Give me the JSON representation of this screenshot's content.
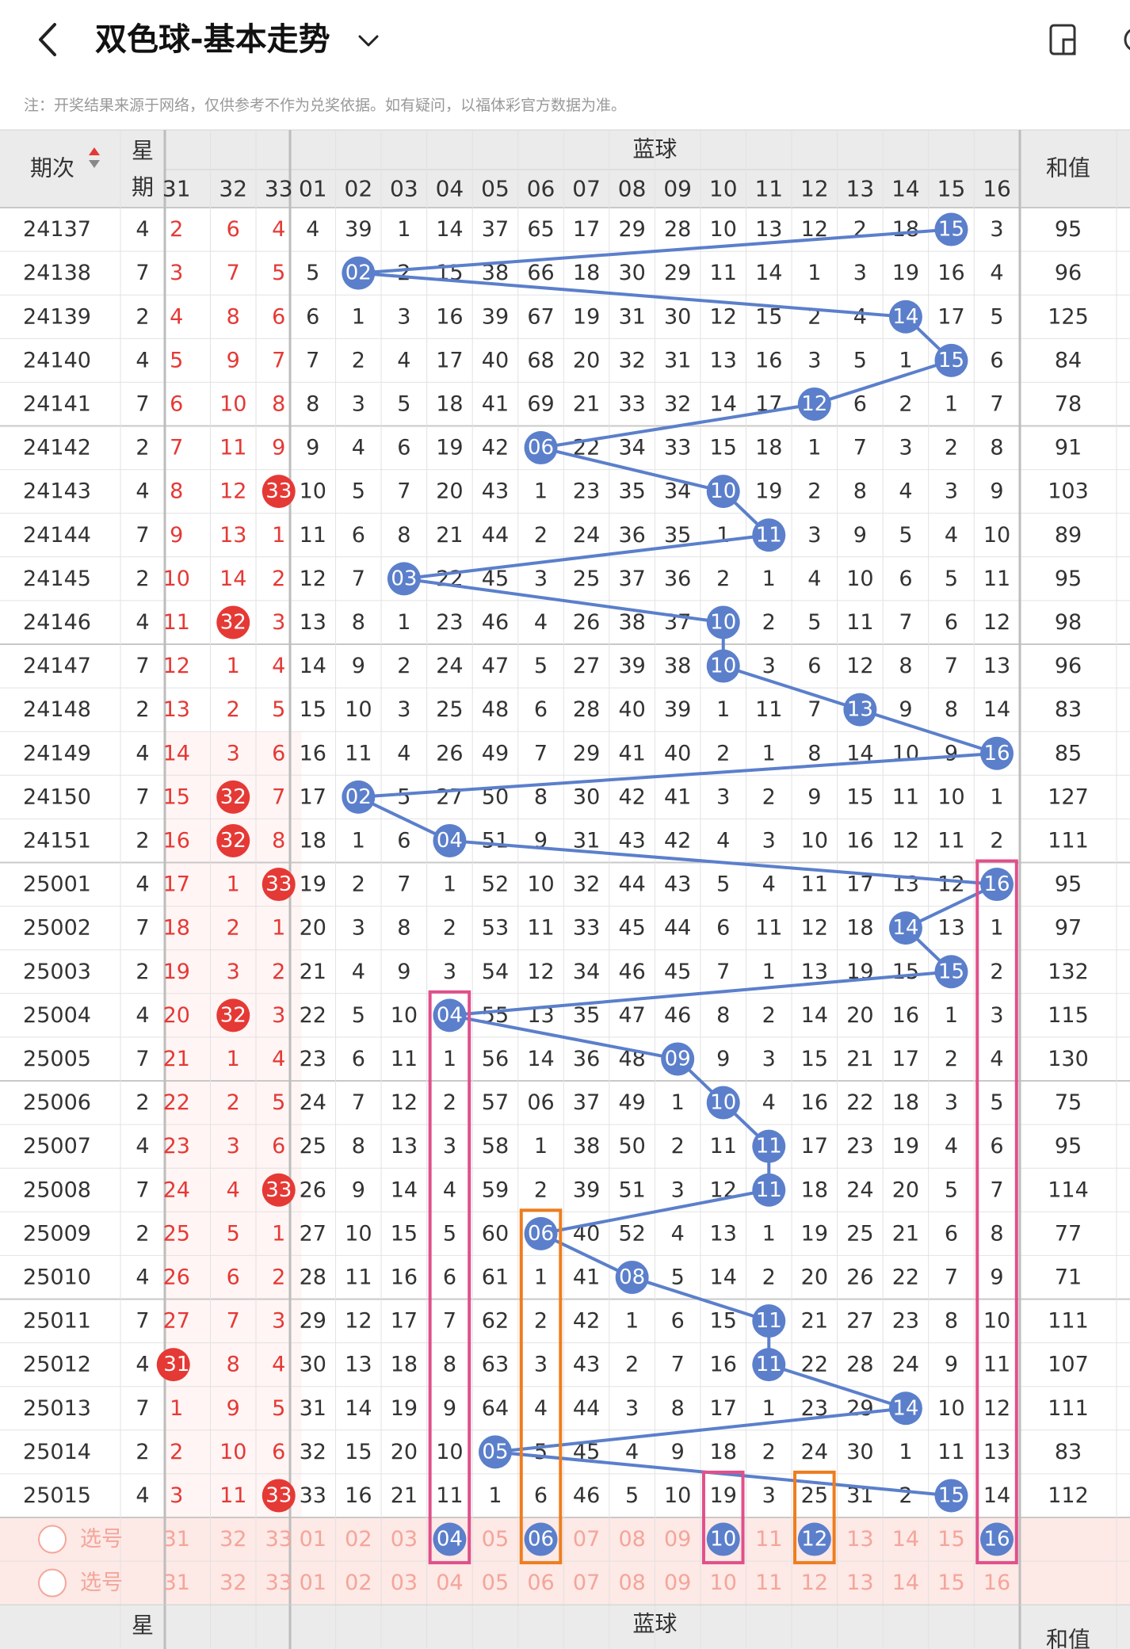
{
  "header": {
    "title": "双色球-基本走势",
    "back_icon": "chevron-left-icon",
    "dropdown_icon": "chevron-down-icon",
    "action_icon": "layout-toggle-icon"
  },
  "note": "注：开奖结果来源于网络，仅供参考不作为兑奖依据。如有疑问，以福体彩官方数据为准。",
  "table": {
    "period_header": "期次",
    "week_header_top": "星",
    "week_header_bottom": "期",
    "blue_section_title": "蓝球",
    "sum_header": "和值",
    "red_columns": [
      "31",
      "32",
      "33"
    ],
    "blue_columns": [
      "01",
      "02",
      "03",
      "04",
      "05",
      "06",
      "07",
      "08",
      "09",
      "10",
      "11",
      "12",
      "13",
      "14",
      "15",
      "16"
    ],
    "rows": [
      {
        "period": "24137",
        "week": "4",
        "red": [
          "2",
          "6",
          "4"
        ],
        "blue": [
          "4",
          "39",
          "1",
          "14",
          "37",
          "65",
          "17",
          "29",
          "28",
          "10",
          "13",
          "12",
          "2",
          "18",
          "15",
          "3"
        ],
        "sum": "95"
      },
      {
        "period": "24138",
        "week": "7",
        "red": [
          "3",
          "7",
          "5"
        ],
        "blue": [
          "5",
          "02",
          "2",
          "15",
          "38",
          "66",
          "18",
          "30",
          "29",
          "11",
          "14",
          "1",
          "3",
          "19",
          "16",
          "4"
        ],
        "sum": "96"
      },
      {
        "period": "24139",
        "week": "2",
        "red": [
          "4",
          "8",
          "6"
        ],
        "blue": [
          "6",
          "1",
          "3",
          "16",
          "39",
          "67",
          "19",
          "31",
          "30",
          "12",
          "15",
          "2",
          "4",
          "14",
          "17",
          "5"
        ],
        "sum": "125"
      },
      {
        "period": "24140",
        "week": "4",
        "red": [
          "5",
          "9",
          "7"
        ],
        "blue": [
          "7",
          "2",
          "4",
          "17",
          "40",
          "68",
          "20",
          "32",
          "31",
          "13",
          "16",
          "3",
          "5",
          "1",
          "15",
          "6"
        ],
        "sum": "84"
      },
      {
        "period": "24141",
        "week": "7",
        "red": [
          "6",
          "10",
          "8"
        ],
        "blue": [
          "8",
          "3",
          "5",
          "18",
          "41",
          "69",
          "21",
          "33",
          "32",
          "14",
          "17",
          "12",
          "6",
          "2",
          "1",
          "7"
        ],
        "sum": "78"
      },
      {
        "period": "24142",
        "week": "2",
        "red": [
          "7",
          "11",
          "9"
        ],
        "blue": [
          "9",
          "4",
          "6",
          "19",
          "42",
          "06",
          "22",
          "34",
          "33",
          "15",
          "18",
          "1",
          "7",
          "3",
          "2",
          "8"
        ],
        "sum": "91"
      },
      {
        "period": "24143",
        "week": "4",
        "red": [
          "8",
          "12",
          "33"
        ],
        "blue": [
          "10",
          "5",
          "7",
          "20",
          "43",
          "1",
          "23",
          "35",
          "34",
          "10",
          "19",
          "2",
          "8",
          "4",
          "3",
          "9"
        ],
        "sum": "103"
      },
      {
        "period": "24144",
        "week": "7",
        "red": [
          "9",
          "13",
          "1"
        ],
        "blue": [
          "11",
          "6",
          "8",
          "21",
          "44",
          "2",
          "24",
          "36",
          "35",
          "1",
          "11",
          "3",
          "9",
          "5",
          "4",
          "10"
        ],
        "sum": "89"
      },
      {
        "period": "24145",
        "week": "2",
        "red": [
          "10",
          "14",
          "2"
        ],
        "blue": [
          "12",
          "7",
          "03",
          "22",
          "45",
          "3",
          "25",
          "37",
          "36",
          "2",
          "1",
          "4",
          "10",
          "6",
          "5",
          "11"
        ],
        "sum": "95"
      },
      {
        "period": "24146",
        "week": "4",
        "red": [
          "11",
          "32",
          "3"
        ],
        "blue": [
          "13",
          "8",
          "1",
          "23",
          "46",
          "4",
          "26",
          "38",
          "37",
          "10",
          "2",
          "5",
          "11",
          "7",
          "6",
          "12"
        ],
        "sum": "98"
      },
      {
        "period": "24147",
        "week": "7",
        "red": [
          "12",
          "1",
          "4"
        ],
        "blue": [
          "14",
          "9",
          "2",
          "24",
          "47",
          "5",
          "27",
          "39",
          "38",
          "10",
          "3",
          "6",
          "12",
          "8",
          "7",
          "13"
        ],
        "sum": "96"
      },
      {
        "period": "24148",
        "week": "2",
        "red": [
          "13",
          "2",
          "5"
        ],
        "blue": [
          "15",
          "10",
          "3",
          "25",
          "48",
          "6",
          "28",
          "40",
          "39",
          "1",
          "11",
          "7",
          "13",
          "9",
          "8",
          "14"
        ],
        "sum": "83"
      },
      {
        "period": "24149",
        "week": "4",
        "red": [
          "14",
          "3",
          "6"
        ],
        "blue": [
          "16",
          "11",
          "4",
          "26",
          "49",
          "7",
          "29",
          "41",
          "40",
          "2",
          "1",
          "8",
          "14",
          "10",
          "9",
          "16"
        ],
        "sum": "85"
      },
      {
        "period": "24150",
        "week": "7",
        "red": [
          "15",
          "32",
          "7"
        ],
        "blue": [
          "17",
          "02",
          "5",
          "27",
          "50",
          "8",
          "30",
          "42",
          "41",
          "3",
          "2",
          "9",
          "15",
          "11",
          "10",
          "1"
        ],
        "sum": "127"
      },
      {
        "period": "24151",
        "week": "2",
        "red": [
          "16",
          "32",
          "8"
        ],
        "blue": [
          "18",
          "1",
          "6",
          "04",
          "51",
          "9",
          "31",
          "43",
          "42",
          "4",
          "3",
          "10",
          "16",
          "12",
          "11",
          "2"
        ],
        "sum": "111"
      },
      {
        "period": "25001",
        "week": "4",
        "red": [
          "17",
          "1",
          "33"
        ],
        "blue": [
          "19",
          "2",
          "7",
          "1",
          "52",
          "10",
          "32",
          "44",
          "43",
          "5",
          "4",
          "11",
          "17",
          "13",
          "12",
          "16"
        ],
        "sum": "95"
      },
      {
        "period": "25002",
        "week": "7",
        "red": [
          "18",
          "2",
          "1"
        ],
        "blue": [
          "20",
          "3",
          "8",
          "2",
          "53",
          "11",
          "33",
          "45",
          "44",
          "6",
          "11",
          "12",
          "18",
          "14",
          "13",
          "1"
        ],
        "sum": "97"
      },
      {
        "period": "25003",
        "week": "2",
        "red": [
          "19",
          "3",
          "2"
        ],
        "blue": [
          "21",
          "4",
          "9",
          "3",
          "54",
          "12",
          "34",
          "46",
          "45",
          "7",
          "1",
          "13",
          "19",
          "15",
          "15",
          "2"
        ],
        "sum": "132"
      },
      {
        "period": "25004",
        "week": "4",
        "red": [
          "20",
          "32",
          "3"
        ],
        "blue": [
          "22",
          "5",
          "10",
          "04",
          "55",
          "13",
          "35",
          "47",
          "46",
          "8",
          "2",
          "14",
          "20",
          "16",
          "1",
          "3"
        ],
        "sum": "115"
      },
      {
        "period": "25005",
        "week": "7",
        "red": [
          "21",
          "1",
          "4"
        ],
        "blue": [
          "23",
          "6",
          "11",
          "1",
          "56",
          "14",
          "36",
          "48",
          "09",
          "9",
          "3",
          "15",
          "21",
          "17",
          "2",
          "4"
        ],
        "sum": "130"
      },
      {
        "period": "25006",
        "week": "2",
        "red": [
          "22",
          "2",
          "5"
        ],
        "blue": [
          "24",
          "7",
          "12",
          "2",
          "57",
          "06",
          "37",
          "49",
          "1",
          "10",
          "4",
          "16",
          "22",
          "18",
          "3",
          "5"
        ],
        "sum": "75"
      },
      {
        "period": "25007",
        "week": "4",
        "red": [
          "23",
          "3",
          "6"
        ],
        "blue": [
          "25",
          "8",
          "13",
          "3",
          "58",
          "1",
          "38",
          "50",
          "2",
          "11",
          "11",
          "17",
          "23",
          "19",
          "4",
          "6"
        ],
        "sum": "95"
      },
      {
        "period": "25008",
        "week": "7",
        "red": [
          "24",
          "4",
          "33"
        ],
        "blue": [
          "26",
          "9",
          "14",
          "4",
          "59",
          "2",
          "39",
          "51",
          "3",
          "12",
          "11",
          "18",
          "24",
          "20",
          "5",
          "7"
        ],
        "sum": "114"
      },
      {
        "period": "25009",
        "week": "2",
        "red": [
          "25",
          "5",
          "1"
        ],
        "blue": [
          "27",
          "10",
          "15",
          "5",
          "60",
          "06",
          "40",
          "52",
          "4",
          "13",
          "1",
          "19",
          "25",
          "21",
          "6",
          "8"
        ],
        "sum": "77"
      },
      {
        "period": "25010",
        "week": "4",
        "red": [
          "26",
          "6",
          "2"
        ],
        "blue": [
          "28",
          "11",
          "16",
          "6",
          "61",
          "1",
          "41",
          "08",
          "5",
          "14",
          "2",
          "20",
          "26",
          "22",
          "7",
          "9"
        ],
        "sum": "71"
      },
      {
        "period": "25011",
        "week": "7",
        "red": [
          "27",
          "7",
          "3"
        ],
        "blue": [
          "29",
          "12",
          "17",
          "7",
          "62",
          "2",
          "42",
          "1",
          "6",
          "15",
          "11",
          "21",
          "27",
          "23",
          "8",
          "10"
        ],
        "sum": "111"
      },
      {
        "period": "25012",
        "week": "4",
        "red": [
          "31",
          "8",
          "4"
        ],
        "blue": [
          "30",
          "13",
          "18",
          "8",
          "63",
          "3",
          "43",
          "2",
          "7",
          "16",
          "11",
          "22",
          "28",
          "24",
          "9",
          "11"
        ],
        "sum": "107"
      },
      {
        "period": "25013",
        "week": "7",
        "red": [
          "1",
          "9",
          "5"
        ],
        "blue": [
          "31",
          "14",
          "19",
          "9",
          "64",
          "4",
          "44",
          "3",
          "8",
          "17",
          "1",
          "23",
          "29",
          "14",
          "10",
          "12"
        ],
        "sum": "111"
      },
      {
        "period": "25014",
        "week": "2",
        "red": [
          "2",
          "10",
          "6"
        ],
        "blue": [
          "32",
          "15",
          "20",
          "10",
          "05",
          "5",
          "45",
          "4",
          "9",
          "18",
          "2",
          "24",
          "30",
          "1",
          "11",
          "13"
        ],
        "sum": "83"
      },
      {
        "period": "25015",
        "week": "4",
        "red": [
          "3",
          "11",
          "33"
        ],
        "blue": [
          "33",
          "16",
          "21",
          "11",
          "1",
          "6",
          "46",
          "5",
          "10",
          "19",
          "3",
          "25",
          "31",
          "2",
          "15",
          "14"
        ],
        "sum": "112"
      }
    ],
    "highlight_red_values": [
      "31",
      "32",
      "33"
    ],
    "predict_label": "选号",
    "predict_red_row": [
      "31",
      "32",
      "33"
    ],
    "predict_blue_row": [
      "01",
      "02",
      "03",
      "04",
      "05",
      "06",
      "07",
      "08",
      "09",
      "10",
      "11",
      "12",
      "13",
      "14",
      "15",
      "16"
    ],
    "predict_selected_row1": [
      "04",
      "06",
      "10",
      "12",
      "16"
    ],
    "colors": {
      "blue_ball": "#5b7fcb",
      "red_ball": "#e53935",
      "red_text": "#e53935",
      "pink_box": "#e0508a",
      "orange_box": "#ee7d1e",
      "predict_bg": "#fde9e6",
      "predict_text": "#f4a59a"
    }
  }
}
